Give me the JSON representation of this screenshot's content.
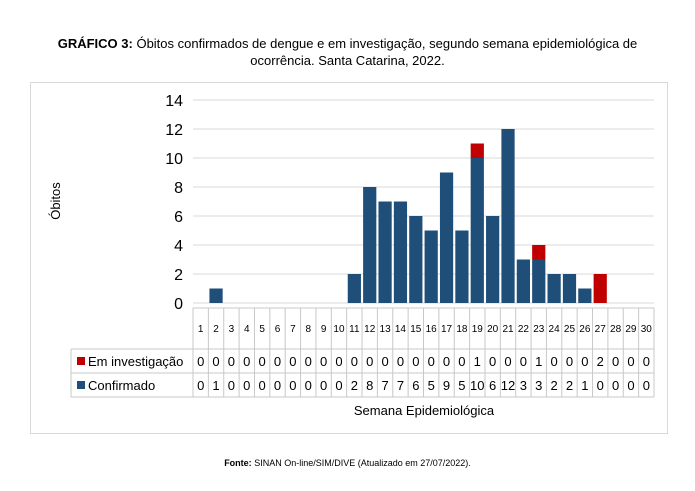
{
  "caption": {
    "label": "GRÁFICO 3:",
    "text": "Óbitos confirmados de dengue e em investigação, segundo semana epidemiológica de ocorrência. Santa Catarina, 2022."
  },
  "source": {
    "label": "Fonte:",
    "text": "SINAN On-line/SIM/DIVE (Atualizado em 27/07/2022)."
  },
  "chart_data": {
    "type": "bar",
    "stacked": true,
    "categories": [
      "1",
      "2",
      "3",
      "4",
      "5",
      "6",
      "7",
      "8",
      "9",
      "10",
      "11",
      "12",
      "13",
      "14",
      "15",
      "16",
      "17",
      "18",
      "19",
      "20",
      "21",
      "22",
      "23",
      "24",
      "25",
      "26",
      "27",
      "28",
      "29",
      "30"
    ],
    "series": [
      {
        "name": "Confirmado",
        "color": "#1f4e79",
        "values": [
          0,
          1,
          0,
          0,
          0,
          0,
          0,
          0,
          0,
          0,
          2,
          8,
          7,
          7,
          6,
          5,
          9,
          5,
          10,
          6,
          12,
          3,
          3,
          2,
          2,
          1,
          0,
          0,
          0,
          0
        ]
      },
      {
        "name": "Em investigação",
        "color": "#c00000",
        "values": [
          0,
          0,
          0,
          0,
          0,
          0,
          0,
          0,
          0,
          0,
          0,
          0,
          0,
          0,
          0,
          0,
          0,
          0,
          1,
          0,
          0,
          0,
          1,
          0,
          0,
          0,
          2,
          0,
          0,
          0
        ]
      }
    ],
    "xlabel": "Semana Epidemiológica",
    "ylabel": "Óbitos",
    "ylim": [
      0,
      14
    ],
    "yticks": [
      0,
      2,
      4,
      6,
      8,
      10,
      12,
      14
    ],
    "grid": true,
    "data_table": true,
    "legend": "in data table"
  }
}
